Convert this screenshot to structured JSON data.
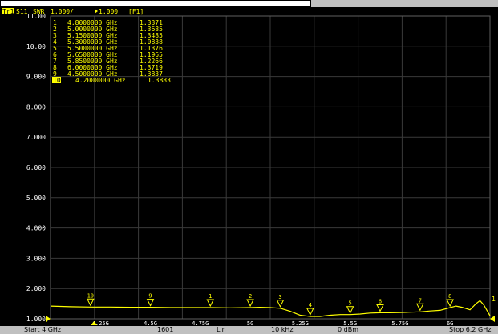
{
  "trace_header": {
    "trace_id": "Tr1",
    "parameter": "S11",
    "format": "SWR",
    "scale": "1.000/",
    "ref": "1.000",
    "channel": "[F1]"
  },
  "status_bar": {
    "start": "Start 4 GHz",
    "points": "1601",
    "sweep_type": "Lin",
    "ifbw": "10 kHz",
    "power": "0 dBm",
    "stop": "Stop 6.2 GHz"
  },
  "colors": {
    "background": "#000000",
    "grid": "#3a3a3a",
    "trace": "#ffff00",
    "text": "#ffff00",
    "axis_text": "#ffffff",
    "frame": "#c0c0c0"
  },
  "chart_data": {
    "type": "line",
    "xlim": [
      4.0,
      6.2
    ],
    "ylim": [
      1.0,
      11.0
    ],
    "y_ticks": [
      "11.00",
      "10.00",
      "9.000",
      "8.000",
      "7.000",
      "6.000",
      "5.000",
      "4.000",
      "3.000",
      "2.000",
      "1.000"
    ],
    "grid": true,
    "series": [
      {
        "x": [
          4.0,
          4.1,
          4.2,
          4.3,
          4.4,
          4.5,
          4.6,
          4.7,
          4.8,
          4.9,
          5.0,
          5.05,
          5.1,
          5.15,
          5.2,
          5.25,
          5.3,
          5.35,
          5.4,
          5.45,
          5.5,
          5.55,
          5.6,
          5.65,
          5.7,
          5.75,
          5.8,
          5.85,
          5.9,
          5.95,
          6.0,
          6.03,
          6.06,
          6.1,
          6.13,
          6.15,
          6.17,
          6.2
        ],
        "y": [
          1.42,
          1.4,
          1.39,
          1.39,
          1.38,
          1.38,
          1.37,
          1.37,
          1.37,
          1.36,
          1.37,
          1.38,
          1.37,
          1.35,
          1.25,
          1.12,
          1.08,
          1.08,
          1.12,
          1.14,
          1.14,
          1.16,
          1.19,
          1.2,
          1.2,
          1.21,
          1.22,
          1.23,
          1.26,
          1.28,
          1.37,
          1.42,
          1.38,
          1.3,
          1.5,
          1.6,
          1.45,
          1.1
        ]
      }
    ],
    "markers": [
      {
        "id": "1",
        "x": 4.8,
        "value": "1.3371",
        "freq": "4.8000000 GHz"
      },
      {
        "id": "2",
        "x": 5.0,
        "value": "1.3685",
        "freq": "5.0000000 GHz"
      },
      {
        "id": "3",
        "x": 5.15,
        "value": "1.3485",
        "freq": "5.1500000 GHz"
      },
      {
        "id": "4",
        "x": 5.3,
        "value": "1.0838",
        "freq": "5.3000000 GHz"
      },
      {
        "id": "5",
        "x": 5.5,
        "value": "1.1376",
        "freq": "5.5000000 GHz"
      },
      {
        "id": "6",
        "x": 5.65,
        "value": "1.1965",
        "freq": "5.6500000 GHz"
      },
      {
        "id": "7",
        "x": 5.85,
        "value": "1.2266",
        "freq": "5.8500000 GHz"
      },
      {
        "id": "8",
        "x": 6.0,
        "value": "1.3719",
        "freq": "6.0000000 GHz"
      },
      {
        "id": "9",
        "x": 4.5,
        "value": "1.3837",
        "freq": "4.5000000 GHz"
      },
      {
        "id": "10",
        "x": 4.2,
        "value": "1.3883",
        "freq": "4.2000000 GHz",
        "active": true
      }
    ],
    "x_axis_labels": [
      {
        "x": 4.25,
        "text": "4.25G"
      },
      {
        "x": 4.5,
        "text": "4.5G"
      },
      {
        "x": 4.75,
        "text": "4.75G"
      },
      {
        "x": 5.0,
        "text": "5G"
      },
      {
        "x": 5.25,
        "text": "5.25G"
      },
      {
        "x": 5.5,
        "text": "5.5G"
      },
      {
        "x": 5.75,
        "text": "5.75G"
      },
      {
        "x": 6.0,
        "text": "6G"
      }
    ]
  }
}
